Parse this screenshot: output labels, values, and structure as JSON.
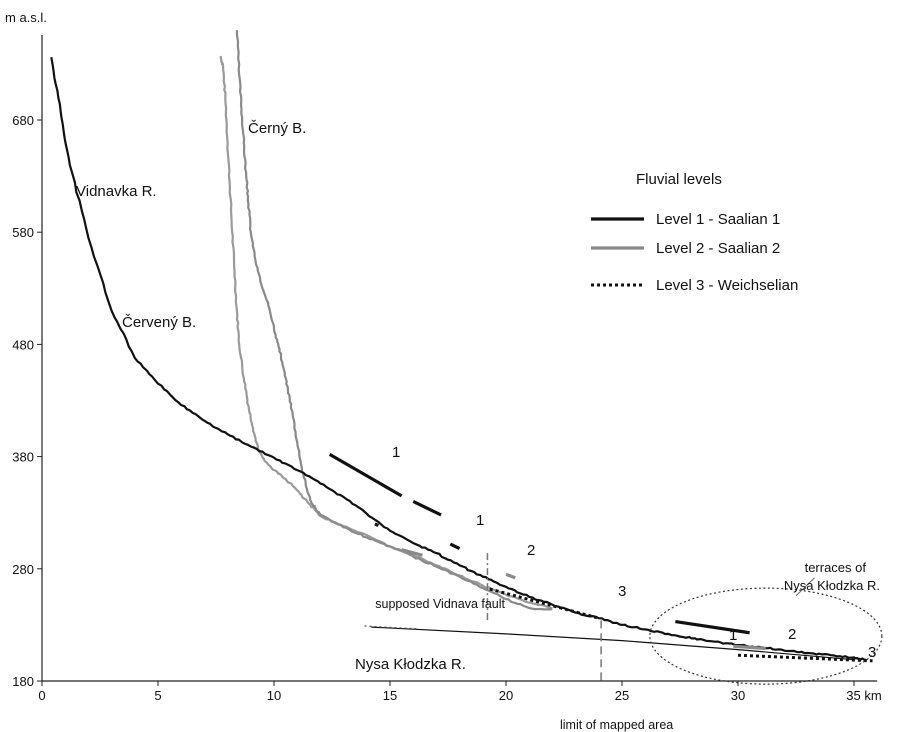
{
  "chart_data": {
    "type": "line",
    "ylabel": "m a.s.l.",
    "xunit": "km",
    "xlim": [
      0,
      36
    ],
    "ylim": [
      180,
      760
    ],
    "x_ticks": [
      0,
      5,
      10,
      15,
      20,
      25,
      30,
      35
    ],
    "x_tick_labels": [
      "0",
      "5",
      "10",
      "15",
      "20",
      "25",
      "30",
      "35 km"
    ],
    "y_ticks": [
      180,
      280,
      380,
      480,
      580,
      680
    ],
    "legend": {
      "title": "Fluvial levels",
      "items": [
        {
          "label": "Level 1 - Saalian 1",
          "style": "black-solid"
        },
        {
          "label": "Level 2 - Saalian 2",
          "style": "gray-solid"
        },
        {
          "label": "Level 3 - Weichselian",
          "style": "black-dotted"
        }
      ]
    },
    "series": [
      {
        "name": "Vidnavka R.",
        "color": "#111111",
        "x": [
          0.4,
          0.8,
          1.2,
          2,
          3,
          4,
          5,
          6,
          7,
          8,
          9,
          10,
          11,
          12,
          13,
          14,
          15,
          16,
          17,
          18,
          19,
          20,
          21,
          22,
          23,
          24,
          25,
          26,
          27,
          28,
          29,
          30,
          31,
          32,
          33,
          34,
          35,
          35.5
        ],
        "y": [
          736,
          688,
          640,
          575,
          510,
          468,
          445,
          426,
          412,
          400,
          389,
          379,
          368,
          356,
          344,
          329,
          314,
          303,
          294,
          283,
          273,
          264,
          255,
          248,
          241,
          236,
          230,
          226,
          222,
          218,
          215,
          212,
          210,
          207,
          205,
          203,
          201,
          199
        ]
      },
      {
        "name": "Černý B.",
        "color": "#8a8a8a",
        "x": [
          8.4,
          8.5,
          8.6,
          8.7,
          8.8,
          8.9,
          9.0,
          9.2,
          9.5,
          9.8,
          10.0,
          10.2,
          10.4,
          10.6,
          10.8,
          11.0,
          11.2,
          11.4,
          11.6,
          11.8,
          12,
          13,
          14,
          15,
          16,
          17,
          18,
          19,
          20,
          21,
          22
        ],
        "y": [
          760,
          720,
          690,
          660,
          630,
          605,
          580,
          555,
          530,
          512,
          495,
          478,
          460,
          440,
          418,
          393,
          370,
          352,
          340,
          333,
          328,
          317,
          308,
          300,
          291,
          282,
          273,
          263,
          253,
          245,
          244
        ]
      },
      {
        "name": "Červený B.",
        "color": "#9a9a9a",
        "x": [
          7.7,
          7.8,
          7.9,
          8.0,
          8.1,
          8.2,
          8.3,
          8.4,
          8.5,
          8.7,
          8.9,
          9.1,
          9.3,
          9.6,
          10,
          10.5,
          11,
          11.5,
          12,
          13,
          14,
          15,
          16,
          17,
          18,
          19,
          20,
          21,
          22
        ],
        "y": [
          737,
          728,
          700,
          660,
          620,
          580,
          545,
          510,
          480,
          450,
          425,
          405,
          388,
          376,
          368,
          360,
          350,
          338,
          327,
          318,
          310,
          300,
          292,
          283,
          274,
          265,
          257,
          250,
          245
        ]
      },
      {
        "name": "Nysa Kłodzka R.",
        "color": "#111111",
        "x": [
          14.2,
          20,
          25,
          30,
          35
        ],
        "y": [
          228,
          222,
          216,
          208,
          199
        ]
      }
    ],
    "annotations": {
      "river_labels": [
        "Vidnavka R.",
        "Černý B.",
        "Červený B.",
        "Nysa Kłodzka R."
      ],
      "fault_label": "supposed Vidnava fault",
      "mapped_limit_label": "limit of mapped area",
      "terraces_label_1": "terraces of",
      "terraces_label_2": "Nysa Kłodzka R.",
      "level_1": "1",
      "level_2": "2",
      "level_3": "3"
    },
    "fault_x": 19.2,
    "mapped_limit_x": 24.1
  }
}
